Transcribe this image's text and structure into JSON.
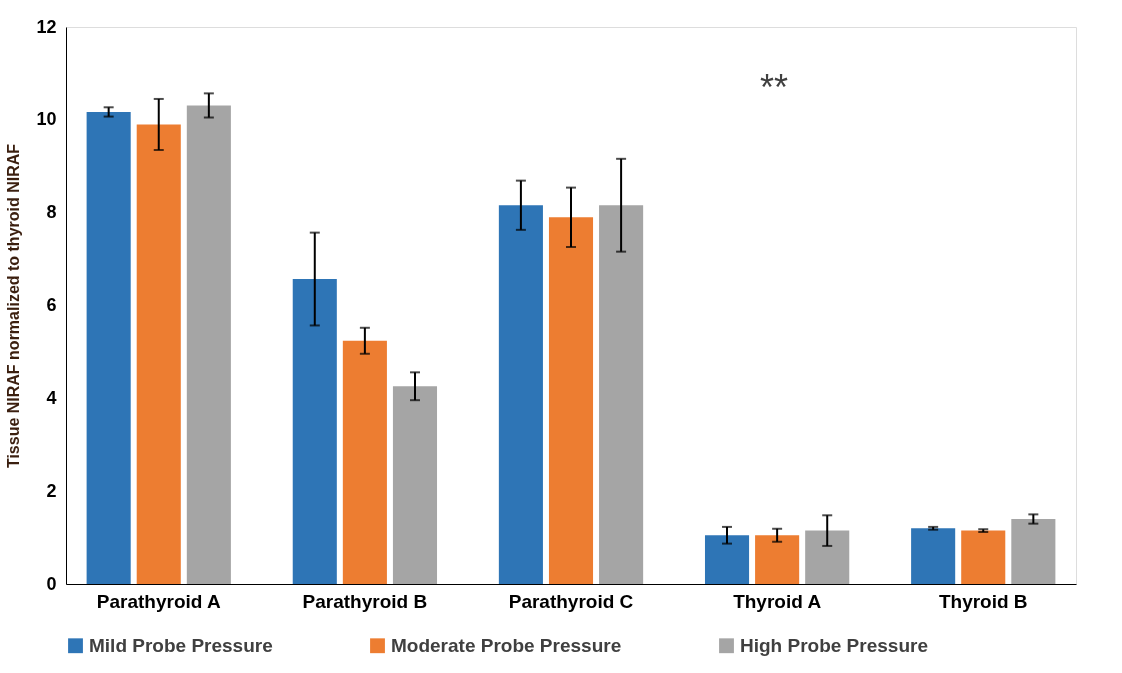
{
  "chart_data": {
    "type": "bar",
    "ylabel": "Tissue NIRAF normalized to thyroid NIRAF",
    "categories": [
      "Parathyroid A",
      "Parathyroid B",
      "Parathyroid C",
      "Thyroid A",
      "Thyroid B"
    ],
    "series": [
      {
        "name": "Mild Probe Pressure",
        "color": "#2e75b6",
        "values": [
          10.17,
          6.57,
          8.16,
          1.05,
          1.2
        ],
        "errors": [
          0.1,
          1.0,
          0.53,
          0.18,
          0.03
        ]
      },
      {
        "name": "Moderate Probe Pressure",
        "color": "#ed7d31",
        "values": [
          9.9,
          5.24,
          7.9,
          1.05,
          1.15
        ],
        "errors": [
          0.55,
          0.28,
          0.64,
          0.14,
          0.03
        ]
      },
      {
        "name": "High Probe Pressure",
        "color": "#a5a5a5",
        "values": [
          10.31,
          4.26,
          8.16,
          1.15,
          1.4
        ],
        "errors": [
          0.26,
          0.3,
          1.0,
          0.33,
          0.1
        ]
      }
    ],
    "ylim": [
      0,
      12
    ],
    "yticks": [
      0,
      2,
      4,
      6,
      8,
      10,
      12
    ],
    "grid": false,
    "legend": "bottom",
    "annotations": [
      "**"
    ]
  }
}
